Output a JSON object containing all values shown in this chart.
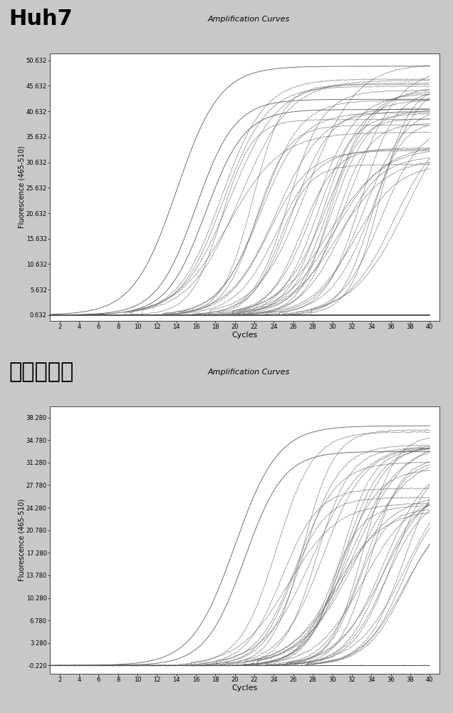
{
  "chart1": {
    "title_label": "Huh7",
    "subtitle": "Amplification Curves",
    "ylabel": "Fluorescence (465-510)",
    "xlabel": "Cycles",
    "xlim": [
      1,
      41
    ],
    "ylim": [
      -0.5,
      52
    ],
    "xticks": [
      2,
      4,
      6,
      8,
      10,
      12,
      14,
      16,
      18,
      20,
      22,
      24,
      26,
      28,
      30,
      32,
      34,
      36,
      38,
      40
    ],
    "yticks": [
      0.632,
      5.632,
      10.632,
      15.632,
      20.632,
      25.632,
      30.632,
      35.632,
      40.632,
      45.632,
      50.632
    ],
    "ytick_labels": [
      "0.632",
      "5.632",
      "10.632",
      "15.632",
      "20.632",
      "25.632",
      "30.632",
      "35.632",
      "40.632",
      "45.632",
      "50.632"
    ],
    "baseline": 0.632,
    "max_val": 50.632,
    "n_sigmoid": 40,
    "n_flat": 20,
    "sigmoid_ct_range": [
      18,
      38
    ],
    "sigmoid_max_range": [
      30,
      50
    ],
    "early_curves": [
      {
        "ct": 14,
        "plateau": 49.5,
        "k": 0.45
      },
      {
        "ct": 16,
        "plateau": 43.0,
        "k": 0.5
      },
      {
        "ct": 17,
        "plateau": 41.0,
        "k": 0.5
      }
    ]
  },
  "chart2": {
    "title_label": "正常肝细胞",
    "subtitle": "Amplification Curves",
    "ylabel": "Fluorescence (465-510)",
    "xlabel": "Cycles",
    "xlim": [
      1,
      41
    ],
    "ylim": [
      -1.5,
      40
    ],
    "xticks": [
      2,
      4,
      6,
      8,
      10,
      12,
      14,
      16,
      18,
      20,
      22,
      24,
      26,
      28,
      30,
      32,
      34,
      36,
      38,
      40
    ],
    "yticks": [
      -0.22,
      3.28,
      6.78,
      10.28,
      13.78,
      17.28,
      20.78,
      24.28,
      27.78,
      31.28,
      34.78,
      38.28
    ],
    "ytick_labels": [
      "-0.220",
      "3.280",
      "6.780",
      "10.280",
      "13.780",
      "17.280",
      "20.780",
      "24.280",
      "27.780",
      "31.280",
      "34.780",
      "38.280"
    ],
    "baseline": -0.22,
    "max_val": 38.28,
    "n_sigmoid": 35,
    "n_flat": 15,
    "sigmoid_ct_range": [
      24,
      38
    ],
    "sigmoid_max_range": [
      22,
      37
    ],
    "early_curves": [
      {
        "ct": 20,
        "plateau": 37.0,
        "k": 0.45
      },
      {
        "ct": 21,
        "plateau": 33.0,
        "k": 0.5
      }
    ]
  },
  "bg_color": "#c8c8c8",
  "plot_bg_color": "#ffffff",
  "line_color": "#666666",
  "title_fontsize": 22,
  "subtitle_fontsize": 8,
  "ylabel_fontsize": 7,
  "xlabel_fontsize": 8,
  "tick_fontsize": 6
}
